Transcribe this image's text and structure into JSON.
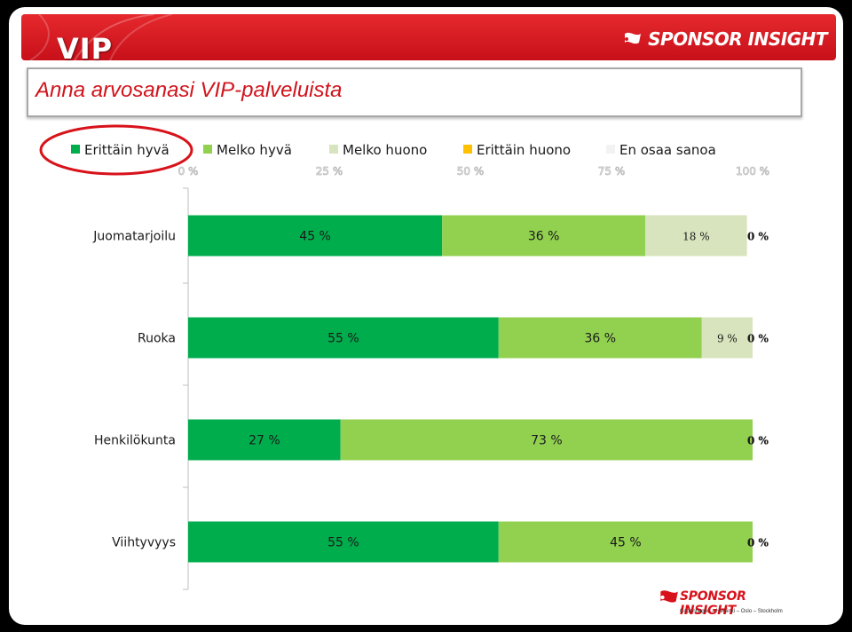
{
  "banner": {
    "title": "VIP",
    "brand": "SPONSOR INSIGHT"
  },
  "question": "Anna arvosanasi VIP-palveluista",
  "footer": {
    "brand": "SPONSOR INSIGHT",
    "tagline": "Copenhagen – Helsinki – Oslo – Stockholm"
  },
  "colors": {
    "banner_red": "#d41a22",
    "question_red": "#d0141c",
    "highlight_circle": "#d8121b",
    "series": [
      "#00ad4d",
      "#92d050",
      "#d7e4bd",
      "#ffc000",
      "#f2f2f2"
    ]
  },
  "chart_data": {
    "type": "bar",
    "orientation": "horizontal",
    "stacked": true,
    "title": "",
    "xlabel": "",
    "ylabel": "",
    "xlim": [
      0,
      100
    ],
    "x_ticks": [
      "0 %",
      "25 %",
      "50 %",
      "75 %",
      "100 %"
    ],
    "x_tick_values": [
      0,
      25,
      50,
      75,
      100
    ],
    "legend_position": "top",
    "categories": [
      "Juomatarjoilu",
      "Ruoka",
      "Henkilökunta",
      "Viihtyvyys"
    ],
    "series": [
      {
        "name": "Erittäin hyvä",
        "values": [
          45,
          55,
          27,
          55
        ],
        "labels": [
          "45 %",
          "55 %",
          "27 %",
          "55 %"
        ]
      },
      {
        "name": "Melko hyvä",
        "values": [
          36,
          36,
          73,
          45
        ],
        "labels": [
          "36 %",
          "36 %",
          "73 %",
          "45 %"
        ]
      },
      {
        "name": "Melko huono",
        "values": [
          18,
          9,
          0,
          0
        ],
        "labels": [
          "18 %",
          "9 %",
          "0 %",
          "0 %"
        ]
      },
      {
        "name": "Erittäin huono",
        "values": [
          0,
          0,
          0,
          0
        ],
        "labels": [
          "0 %",
          "0 %",
          "0 %",
          "0 %"
        ]
      },
      {
        "name": "En osaa sanoa",
        "values": [
          0,
          0,
          0,
          0
        ],
        "labels": [
          "0 %",
          "0 %",
          "0 %",
          "0 %"
        ]
      }
    ],
    "highlighted_legend_item": "Erittäin hyvä"
  }
}
